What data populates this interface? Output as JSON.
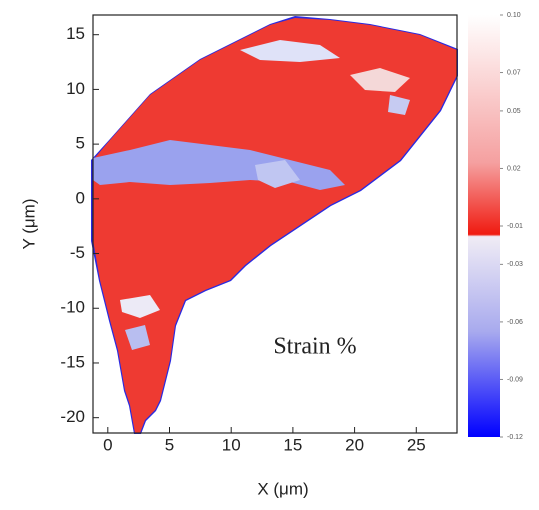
{
  "chart_data": {
    "type": "heatmap",
    "xlabel": "X (μm)",
    "ylabel": "Y (μm)",
    "annotation": "Strain %",
    "xlim": [
      -1.2,
      28.3
    ],
    "ylim": [
      -21.4,
      16.8
    ],
    "xticks": [
      0,
      5,
      10,
      15,
      20,
      25
    ],
    "yticks": [
      -20,
      -15,
      -10,
      -5,
      0,
      5,
      10,
      15
    ],
    "colorbar": {
      "lim": [
        -0.12,
        0.1
      ],
      "ticks": [
        {
          "value": 0.1,
          "label": "0.10"
        },
        {
          "value": 0.07,
          "label": "0.07"
        },
        {
          "value": 0.05,
          "label": "0.05"
        },
        {
          "value": 0.02,
          "label": "0.02"
        },
        -0.01,
        -0.03,
        -0.06,
        -0.09,
        -0.12
      ]
    }
  }
}
